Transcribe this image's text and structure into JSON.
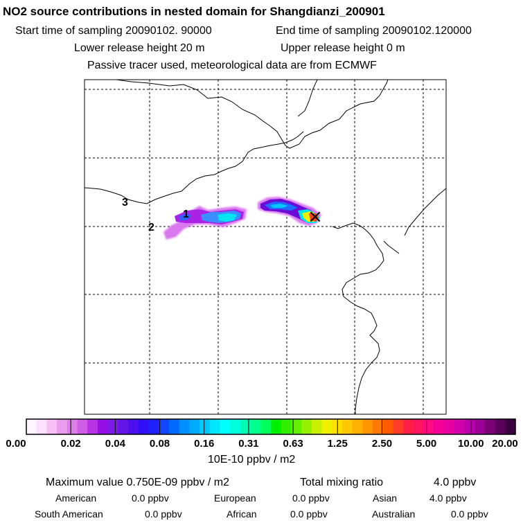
{
  "title": "NO2 source contributions in nested domain for Shangdianzi_200901",
  "sampling": {
    "start": "Start time of sampling 20090102. 90000",
    "end": "End time of sampling 20090102.120000"
  },
  "release": {
    "lower": "Lower release height   20 m",
    "upper": "Upper release height    0 m"
  },
  "note": "Passive tracer used, meteorological data are from ECMWF",
  "map": {
    "markers": [
      "1",
      "2",
      "3"
    ],
    "receptor_symbol": "×"
  },
  "colorbar": {
    "ticks": [
      "0.00",
      "0.02",
      "0.04",
      "0.08",
      "0.16",
      "0.31",
      "0.63",
      "1.25",
      "2.50",
      "5.00",
      "10.00",
      "20.00"
    ],
    "unit": "10E-10 ppbv / m2",
    "colors": [
      "#fff4ff",
      "#fde0fd",
      "#f6c0f6",
      "#eb9eee",
      "#dd7fe6",
      "#ce5ee6",
      "#b734e6",
      "#9410e6",
      "#7d1ae6",
      "#6414e6",
      "#4a10ee",
      "#3210f6",
      "#2020fa",
      "#1046ff",
      "#006aff",
      "#0090ff",
      "#00aaff",
      "#00c8ff",
      "#00e6ff",
      "#00ffff",
      "#00ffdc",
      "#00ffb4",
      "#00ff8c",
      "#00ff5a",
      "#00f000",
      "#30f000",
      "#64f000",
      "#96f000",
      "#c8f000",
      "#f0f000",
      "#ffe000",
      "#ffc800",
      "#ffb000",
      "#ff9600",
      "#ff7800",
      "#ff5a00",
      "#ff3c28",
      "#ff1e46",
      "#ff1464",
      "#ff0a82",
      "#f50096",
      "#e600a0",
      "#d000aa",
      "#b800aa",
      "#9a0096",
      "#7a0078",
      "#5a005a",
      "#3c003c"
    ]
  },
  "summary": {
    "maximum": "Maximum value  0.750E-09 ppbv / m2",
    "total_label": "Total mixing ratio",
    "total_value": "4.0 ppbv",
    "regions": [
      {
        "name": "American",
        "value": "0.0 ppbv"
      },
      {
        "name": "European",
        "value": "0.0 ppbv"
      },
      {
        "name": "Asian",
        "value": "4.0 ppbv"
      },
      {
        "name": "South American",
        "value": "0.0 ppbv"
      },
      {
        "name": "African",
        "value": "0.0 ppbv"
      },
      {
        "name": "Australian",
        "value": "0.0 ppbv"
      }
    ]
  }
}
